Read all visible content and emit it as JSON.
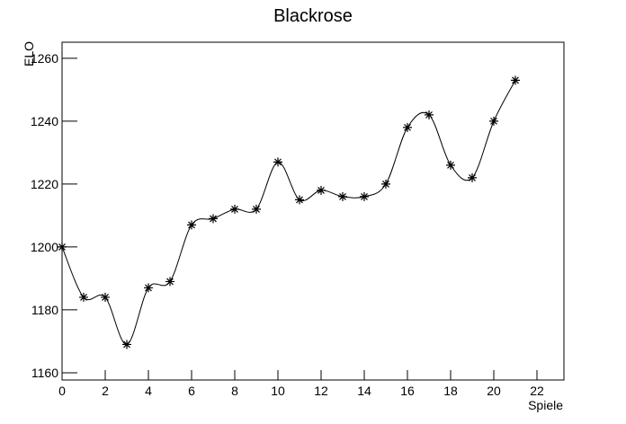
{
  "chart_data": {
    "type": "line",
    "title": "Blackrose",
    "xlabel": "Spiele",
    "ylabel": "ELO",
    "x": [
      0,
      1,
      2,
      3,
      4,
      5,
      6,
      7,
      8,
      9,
      10,
      11,
      12,
      13,
      14,
      15,
      16,
      17,
      18,
      19,
      20,
      21
    ],
    "values": [
      1200,
      1184,
      1184,
      1169,
      1187,
      1189,
      1207,
      1209,
      1212,
      1212,
      1227,
      1215,
      1218,
      1216,
      1216,
      1220,
      1238,
      1242,
      1226,
      1222,
      1240,
      1253
    ],
    "color": "#000000",
    "xlim": [
      0,
      23.25
    ],
    "xticks": [
      0,
      2,
      4,
      6,
      8,
      10,
      12,
      14,
      16,
      18,
      20,
      22
    ],
    "ylim": [
      1157.7,
      1265.1
    ],
    "yticks": [
      1160,
      1180,
      1200,
      1220,
      1240,
      1260
    ]
  }
}
